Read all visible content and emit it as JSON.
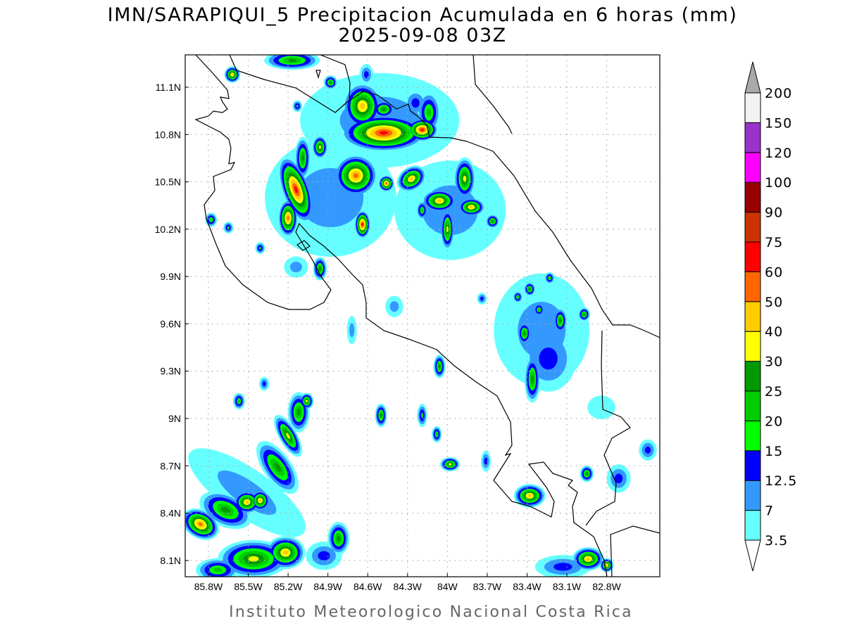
{
  "title": {
    "line1": "IMN/SARAPIQUI_5 Precipitacion Acumulada en 6 horas (mm)",
    "line2": "2025-09-08 03Z"
  },
  "footer": "Instituto Meteorologico Nacional Costa Rica",
  "chart_data": {
    "type": "heatmap",
    "subtype": "filled-contour map",
    "units": "mm",
    "xlim": [
      -85.975,
      -82.4
    ],
    "ylim": [
      7.997,
      11.305
    ],
    "grid": true,
    "x_ticks": [
      -85.8,
      -85.5,
      -85.2,
      -84.9,
      -84.6,
      -84.3,
      -84.0,
      -83.7,
      -83.4,
      -83.1,
      -82.8
    ],
    "x_tick_labels": [
      "85.8W",
      "85.5W",
      "85.2W",
      "84.9W",
      "84.6W",
      "84.3W",
      "84W",
      "83.7W",
      "83.4W",
      "83.1W",
      "82.8W"
    ],
    "y_ticks": [
      11.1,
      10.8,
      10.5,
      10.2,
      9.9,
      9.6,
      9.3,
      9.0,
      8.7,
      8.4,
      8.1
    ],
    "y_tick_labels": [
      "11.1N",
      "10.8N",
      "10.5N",
      "10.2N",
      "9.9N",
      "9.6N",
      "9.3N",
      "9N",
      "8.7N",
      "8.4N",
      "8.1N"
    ],
    "colorbar": {
      "placement": "right",
      "levels": [
        3.5,
        7,
        12.5,
        15,
        20,
        25,
        30,
        40,
        50,
        60,
        75,
        90,
        100,
        120,
        150,
        200
      ],
      "level_labels": [
        "3.5",
        "7",
        "12.5",
        "15",
        "20",
        "25",
        "30",
        "40",
        "50",
        "60",
        "75",
        "90",
        "100",
        "120",
        "150",
        "200"
      ],
      "colors": [
        "#66ffff",
        "#3399ff",
        "#0000ff",
        "#00ff00",
        "#00cc00",
        "#009900",
        "#ffff00",
        "#ffcc00",
        "#ff6600",
        "#ff0000",
        "#cc3300",
        "#990000",
        "#ff00ff",
        "#9933cc",
        "#f2f2f2"
      ],
      "over_color": "#aaaaaa",
      "under_color": "#ffffff"
    },
    "cells_note_fields": [
      "lon",
      "lat",
      "rx_deg",
      "ry_deg",
      "peak_mm",
      "rotation_deg"
    ],
    "cells": [
      [
        -84.51,
        10.89,
        0.4,
        0.2,
        7,
        0
      ],
      [
        -84.88,
        10.4,
        0.33,
        0.25,
        7,
        0
      ],
      [
        -83.98,
        10.32,
        0.28,
        0.21,
        7,
        0
      ],
      [
        -83.29,
        9.56,
        0.24,
        0.24,
        7,
        0
      ],
      [
        -85.51,
        8.53,
        0.35,
        0.1,
        7,
        -35
      ],
      [
        -84.64,
        10.98,
        0.1,
        0.1,
        40,
        0
      ],
      [
        -84.48,
        10.81,
        0.22,
        0.08,
        60,
        0
      ],
      [
        -84.19,
        10.83,
        0.08,
        0.05,
        60,
        0
      ],
      [
        -84.48,
        10.96,
        0.06,
        0.04,
        25,
        0
      ],
      [
        -84.14,
        10.94,
        0.06,
        0.09,
        20,
        0
      ],
      [
        -85.14,
        10.45,
        0.07,
        0.15,
        60,
        20
      ],
      [
        -85.2,
        10.27,
        0.05,
        0.08,
        50,
        0
      ],
      [
        -84.96,
        10.72,
        0.04,
        0.05,
        30,
        0
      ],
      [
        -85.09,
        10.65,
        0.04,
        0.09,
        25,
        0
      ],
      [
        -84.69,
        10.54,
        0.11,
        0.09,
        50,
        0
      ],
      [
        -84.46,
        10.49,
        0.04,
        0.035,
        50,
        0
      ],
      [
        -84.64,
        10.23,
        0.04,
        0.06,
        60,
        0
      ],
      [
        -84.27,
        10.52,
        0.08,
        0.05,
        40,
        35
      ],
      [
        -84.06,
        10.38,
        0.09,
        0.05,
        40,
        0
      ],
      [
        -83.87,
        10.52,
        0.055,
        0.09,
        30,
        0
      ],
      [
        -83.82,
        10.34,
        0.07,
        0.04,
        40,
        0
      ],
      [
        -84.0,
        10.2,
        0.035,
        0.09,
        30,
        0
      ],
      [
        -83.66,
        10.25,
        0.035,
        0.03,
        25,
        0
      ],
      [
        -84.19,
        10.32,
        0.03,
        0.04,
        20,
        0
      ],
      [
        -85.62,
        11.18,
        0.04,
        0.035,
        40,
        0
      ],
      [
        -85.86,
        8.33,
        0.1,
        0.06,
        50,
        -30
      ],
      [
        -85.51,
        8.47,
        0.07,
        0.05,
        40,
        0
      ],
      [
        -85.41,
        8.48,
        0.05,
        0.045,
        45,
        0
      ],
      [
        -85.67,
        8.42,
        0.14,
        0.07,
        25,
        -25
      ],
      [
        -85.28,
        8.69,
        0.07,
        0.13,
        25,
        35
      ],
      [
        -85.2,
        8.89,
        0.045,
        0.1,
        30,
        30
      ],
      [
        -85.12,
        9.04,
        0.055,
        0.085,
        25,
        0
      ],
      [
        -85.06,
        9.11,
        0.035,
        0.035,
        30,
        0
      ],
      [
        -85.46,
        8.11,
        0.18,
        0.08,
        30,
        0
      ],
      [
        -85.22,
        8.15,
        0.1,
        0.07,
        40,
        0
      ],
      [
        -84.82,
        8.24,
        0.055,
        0.07,
        25,
        0
      ],
      [
        -85.73,
        8.04,
        0.11,
        0.05,
        20,
        0
      ],
      [
        -84.93,
        8.13,
        0.09,
        0.06,
        12.5,
        0
      ],
      [
        -84.06,
        9.33,
        0.03,
        0.05,
        25,
        0
      ],
      [
        -84.5,
        9.02,
        0.03,
        0.05,
        25,
        0
      ],
      [
        -84.19,
        9.02,
        0.025,
        0.05,
        15,
        0
      ],
      [
        -84.08,
        8.9,
        0.025,
        0.035,
        20,
        0
      ],
      [
        -83.98,
        8.71,
        0.05,
        0.03,
        30,
        0
      ],
      [
        -83.71,
        8.73,
        0.025,
        0.045,
        12.5,
        0
      ],
      [
        -83.36,
        9.25,
        0.04,
        0.1,
        25,
        0
      ],
      [
        -83.42,
        9.54,
        0.035,
        0.05,
        25,
        0
      ],
      [
        -83.15,
        9.62,
        0.035,
        0.055,
        25,
        0
      ],
      [
        -82.97,
        9.66,
        0.03,
        0.03,
        25,
        0
      ],
      [
        -83.38,
        9.82,
        0.03,
        0.03,
        25,
        0
      ],
      [
        -83.31,
        9.69,
        0.03,
        0.03,
        20,
        0
      ],
      [
        -83.23,
        9.89,
        0.025,
        0.025,
        20,
        0
      ],
      [
        -83.47,
        9.77,
        0.025,
        0.025,
        20,
        0
      ],
      [
        -83.24,
        9.38,
        0.14,
        0.14,
        12.5,
        0
      ],
      [
        -83.38,
        8.51,
        0.08,
        0.05,
        40,
        0
      ],
      [
        -82.95,
        8.65,
        0.035,
        0.035,
        25,
        0
      ],
      [
        -82.94,
        8.11,
        0.08,
        0.05,
        40,
        0
      ],
      [
        -82.8,
        8.07,
        0.035,
        0.03,
        40,
        0
      ],
      [
        -83.13,
        8.06,
        0.14,
        0.05,
        12.5,
        0
      ],
      [
        -82.71,
        8.62,
        0.06,
        0.06,
        12.5,
        0
      ],
      [
        -82.49,
        8.8,
        0.045,
        0.045,
        12.5,
        0
      ],
      [
        -84.96,
        9.95,
        0.035,
        0.05,
        25,
        0
      ],
      [
        -85.14,
        9.96,
        0.06,
        0.045,
        7,
        0
      ],
      [
        -84.72,
        9.56,
        0.025,
        0.06,
        7,
        0
      ],
      [
        -84.4,
        9.71,
        0.045,
        0.045,
        7,
        0
      ],
      [
        -83.74,
        9.76,
        0.025,
        0.025,
        12.5,
        0
      ],
      [
        -85.78,
        10.26,
        0.03,
        0.03,
        20,
        0
      ],
      [
        -85.65,
        10.21,
        0.025,
        0.025,
        15,
        0
      ],
      [
        -85.41,
        10.08,
        0.025,
        0.025,
        15,
        0
      ],
      [
        -85.57,
        9.11,
        0.03,
        0.035,
        20,
        0
      ],
      [
        -85.38,
        9.22,
        0.025,
        0.03,
        12.5,
        0
      ],
      [
        -85.17,
        11.27,
        0.14,
        0.04,
        25,
        0
      ],
      [
        -84.88,
        11.13,
        0.035,
        0.03,
        25,
        0
      ],
      [
        -85.13,
        10.98,
        0.025,
        0.025,
        15,
        0
      ],
      [
        -84.61,
        11.18,
        0.035,
        0.045,
        12.5,
        0
      ],
      [
        -84.24,
        11.0,
        0.06,
        0.06,
        12.5,
        0
      ],
      [
        -82.84,
        9.07,
        0.07,
        0.05,
        3.5,
        0
      ]
    ]
  }
}
